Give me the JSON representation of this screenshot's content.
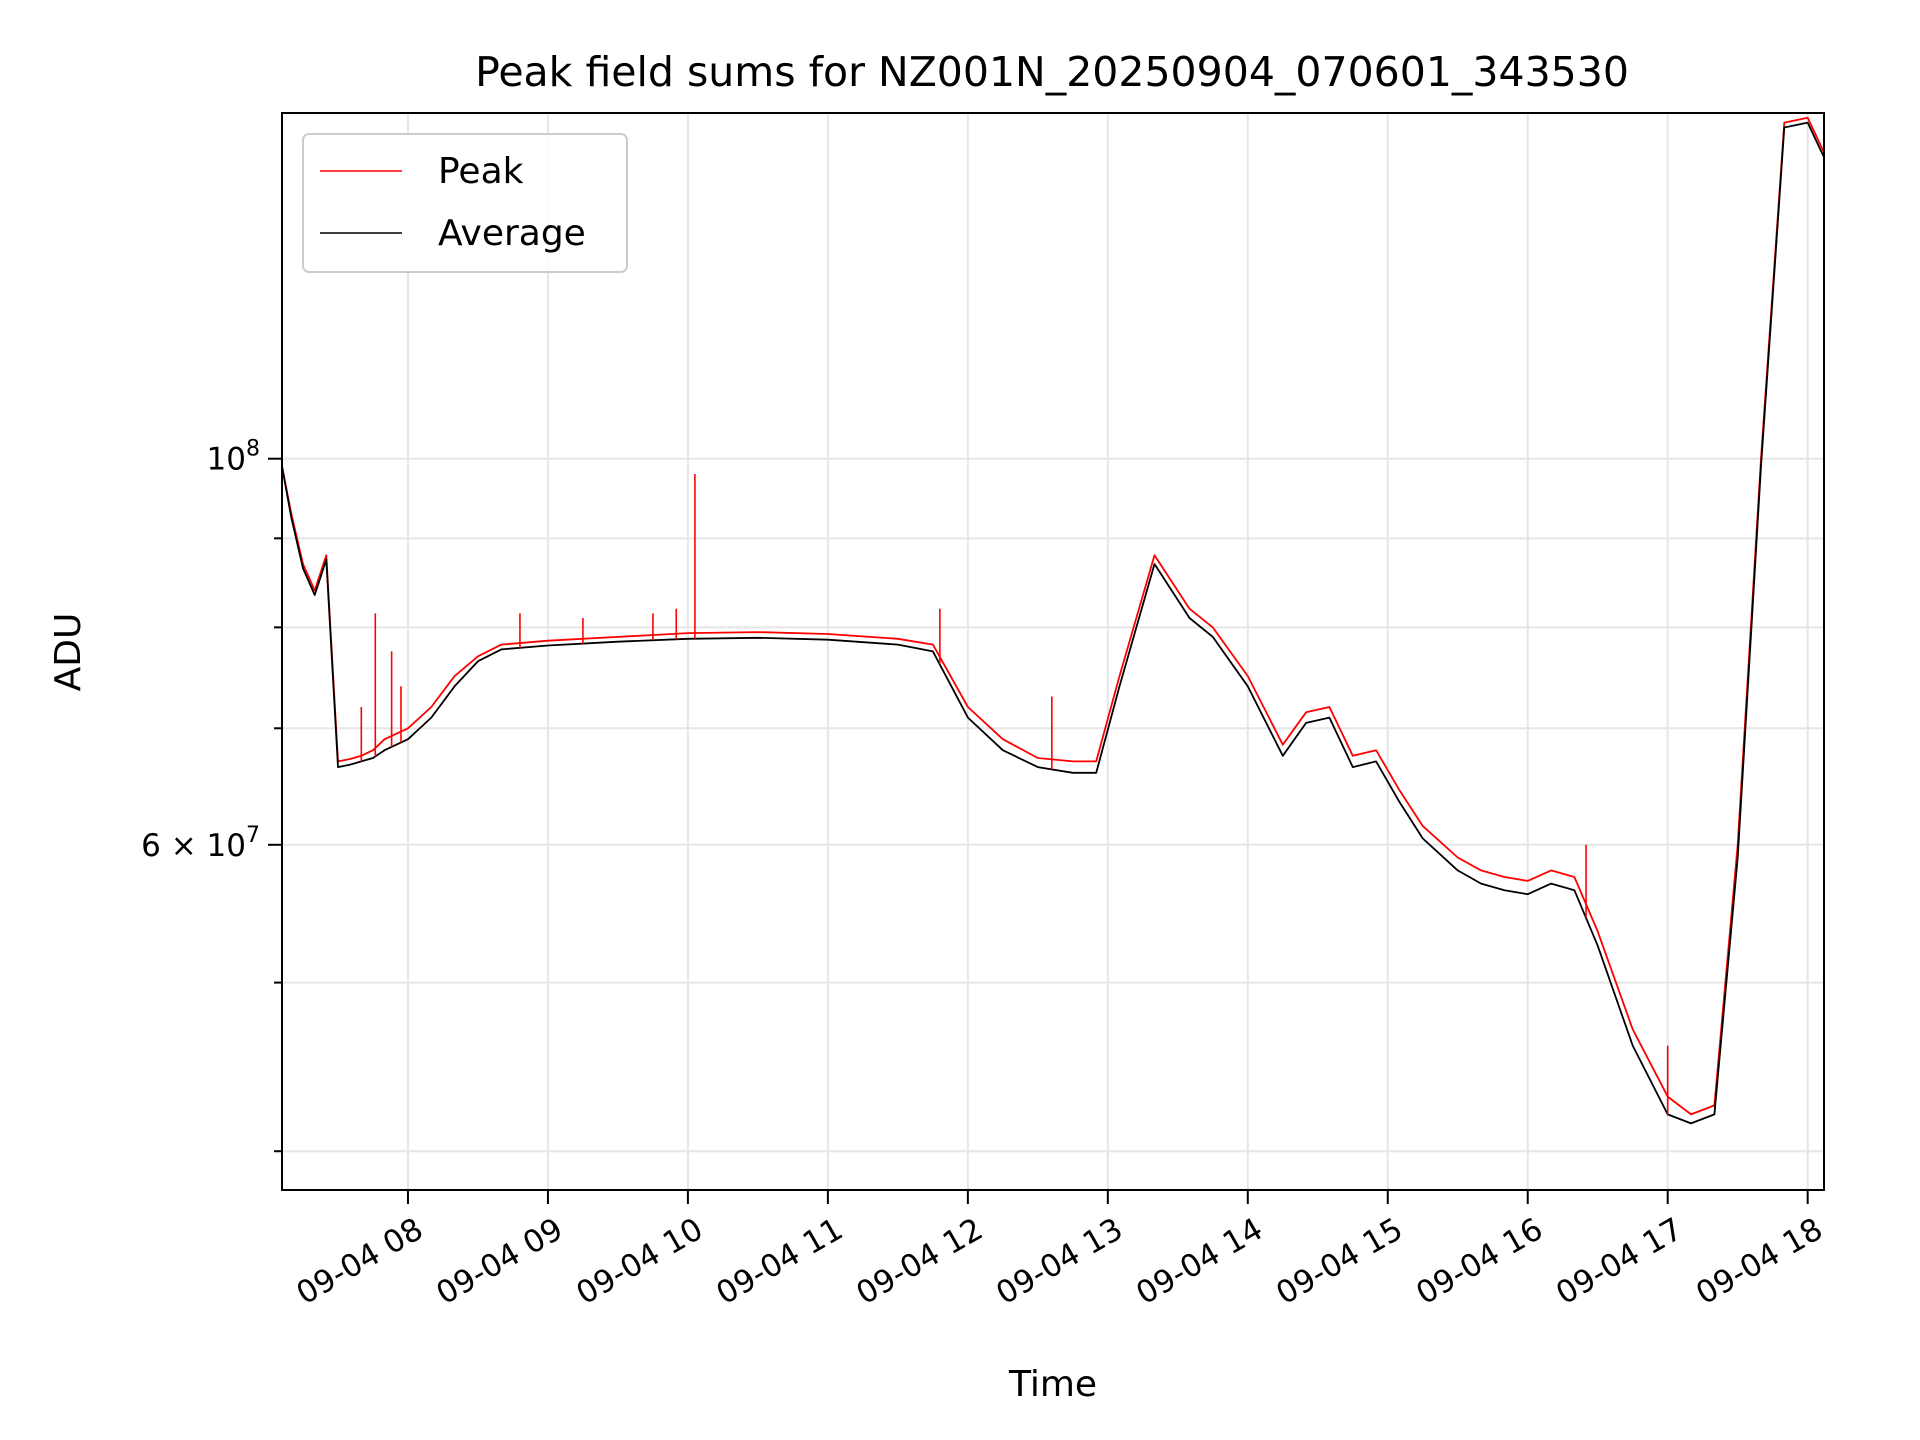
{
  "chart_data": {
    "type": "line",
    "title": "Peak field sums for NZ001N_20250904_070601_343530",
    "xlabel": "Time",
    "ylabel": "ADU",
    "y_scale": "log",
    "grid": true,
    "legend_position": "upper-left",
    "xlim": [
      "2025-09-04 07:06",
      "2025-09-04 18:07"
    ],
    "ylim": [
      38000000,
      158000000
    ],
    "x_ticks": [
      {
        "label": "09-04 08",
        "value": "2025-09-04 08:00"
      },
      {
        "label": "09-04 09",
        "value": "2025-09-04 09:00"
      },
      {
        "label": "09-04 10",
        "value": "2025-09-04 10:00"
      },
      {
        "label": "09-04 11",
        "value": "2025-09-04 11:00"
      },
      {
        "label": "09-04 12",
        "value": "2025-09-04 12:00"
      },
      {
        "label": "09-04 13",
        "value": "2025-09-04 13:00"
      },
      {
        "label": "09-04 14",
        "value": "2025-09-04 14:00"
      },
      {
        "label": "09-04 15",
        "value": "2025-09-04 15:00"
      },
      {
        "label": "09-04 16",
        "value": "2025-09-04 16:00"
      },
      {
        "label": "09-04 17",
        "value": "2025-09-04 17:00"
      },
      {
        "label": "09-04 18",
        "value": "2025-09-04 18:00"
      }
    ],
    "y_major_ticks": [
      {
        "base": "10",
        "exp": "8",
        "value": 100000000
      },
      {
        "base": "6 × 10",
        "exp": "7",
        "value": 60000000
      }
    ],
    "y_minor_ticks": [
      40000000,
      50000000,
      70000000,
      80000000,
      90000000
    ],
    "series": [
      {
        "name": "Peak",
        "color": "#ff0000",
        "x": [
          "2025-09-04 07:06",
          "2025-09-04 07:10",
          "2025-09-04 07:15",
          "2025-09-04 07:20",
          "2025-09-04 07:25",
          "2025-09-04 07:30",
          "2025-09-04 07:35",
          "2025-09-04 07:40",
          "2025-09-04 07:45",
          "2025-09-04 07:50",
          "2025-09-04 08:00",
          "2025-09-04 08:10",
          "2025-09-04 08:20",
          "2025-09-04 08:30",
          "2025-09-04 08:40",
          "2025-09-04 09:00",
          "2025-09-04 09:30",
          "2025-09-04 10:00",
          "2025-09-04 10:30",
          "2025-09-04 11:00",
          "2025-09-04 11:30",
          "2025-09-04 11:45",
          "2025-09-04 12:00",
          "2025-09-04 12:15",
          "2025-09-04 12:30",
          "2025-09-04 12:45",
          "2025-09-04 12:55",
          "2025-09-04 13:05",
          "2025-09-04 13:20",
          "2025-09-04 13:35",
          "2025-09-04 13:45",
          "2025-09-04 14:00",
          "2025-09-04 14:15",
          "2025-09-04 14:25",
          "2025-09-04 14:35",
          "2025-09-04 14:45",
          "2025-09-04 14:55",
          "2025-09-04 15:05",
          "2025-09-04 15:15",
          "2025-09-04 15:30",
          "2025-09-04 15:40",
          "2025-09-04 15:50",
          "2025-09-04 16:00",
          "2025-09-04 16:10",
          "2025-09-04 16:20",
          "2025-09-04 16:30",
          "2025-09-04 16:45",
          "2025-09-04 17:00",
          "2025-09-04 17:10",
          "2025-09-04 17:20",
          "2025-09-04 17:30",
          "2025-09-04 17:40",
          "2025-09-04 17:50",
          "2025-09-04 18:00",
          "2025-09-04 18:07"
        ],
        "values": [
          99000000,
          93000000,
          87000000,
          84000000,
          88000000,
          67000000,
          67200000,
          67500000,
          68000000,
          69000000,
          70000000,
          72000000,
          75000000,
          77000000,
          78200000,
          78600000,
          79000000,
          79400000,
          79500000,
          79300000,
          78800000,
          78200000,
          72000000,
          69000000,
          67300000,
          67000000,
          67000000,
          75000000,
          88000000,
          82000000,
          80000000,
          75000000,
          68500000,
          71500000,
          72000000,
          67500000,
          68000000,
          64500000,
          61500000,
          59000000,
          58000000,
          57500000,
          57200000,
          58000000,
          57500000,
          53500000,
          47000000,
          43000000,
          42000000,
          42500000,
          60000000,
          100000000,
          156000000,
          157000000,
          150000000
        ]
      },
      {
        "name": "Average",
        "color": "#000000",
        "x": [
          "2025-09-04 07:06",
          "2025-09-04 07:10",
          "2025-09-04 07:15",
          "2025-09-04 07:20",
          "2025-09-04 07:25",
          "2025-09-04 07:30",
          "2025-09-04 07:35",
          "2025-09-04 07:40",
          "2025-09-04 07:45",
          "2025-09-04 07:50",
          "2025-09-04 08:00",
          "2025-09-04 08:10",
          "2025-09-04 08:20",
          "2025-09-04 08:30",
          "2025-09-04 08:40",
          "2025-09-04 09:00",
          "2025-09-04 09:30",
          "2025-09-04 10:00",
          "2025-09-04 10:30",
          "2025-09-04 11:00",
          "2025-09-04 11:30",
          "2025-09-04 11:45",
          "2025-09-04 12:00",
          "2025-09-04 12:15",
          "2025-09-04 12:30",
          "2025-09-04 12:45",
          "2025-09-04 12:55",
          "2025-09-04 13:05",
          "2025-09-04 13:20",
          "2025-09-04 13:35",
          "2025-09-04 13:45",
          "2025-09-04 14:00",
          "2025-09-04 14:15",
          "2025-09-04 14:25",
          "2025-09-04 14:35",
          "2025-09-04 14:45",
          "2025-09-04 14:55",
          "2025-09-04 15:05",
          "2025-09-04 15:15",
          "2025-09-04 15:30",
          "2025-09-04 15:40",
          "2025-09-04 15:50",
          "2025-09-04 16:00",
          "2025-09-04 16:10",
          "2025-09-04 16:20",
          "2025-09-04 16:30",
          "2025-09-04 16:45",
          "2025-09-04 17:00",
          "2025-09-04 17:10",
          "2025-09-04 17:20",
          "2025-09-04 17:30",
          "2025-09-04 17:40",
          "2025-09-04 17:50",
          "2025-09-04 18:00",
          "2025-09-04 18:07"
        ],
        "values": [
          99000000,
          92500000,
          86500000,
          83500000,
          87500000,
          66500000,
          66700000,
          67000000,
          67300000,
          68000000,
          69000000,
          71000000,
          74000000,
          76500000,
          77700000,
          78100000,
          78500000,
          78800000,
          78900000,
          78700000,
          78200000,
          77500000,
          71000000,
          68000000,
          66500000,
          66000000,
          66000000,
          74000000,
          87000000,
          81000000,
          79000000,
          74000000,
          67500000,
          70500000,
          71000000,
          66500000,
          67000000,
          63500000,
          60500000,
          58000000,
          57000000,
          56500000,
          56200000,
          57000000,
          56500000,
          52500000,
          46000000,
          42000000,
          41500000,
          42000000,
          59000000,
          99000000,
          155000000,
          156000000,
          149000000
        ]
      }
    ],
    "spikes": [
      {
        "x": "2025-09-04 07:46",
        "value": 81500000
      },
      {
        "x": "2025-09-04 07:53",
        "value": 77500000
      },
      {
        "x": "2025-09-04 07:57",
        "value": 74000000
      },
      {
        "x": "2025-09-04 07:40",
        "value": 72000000
      },
      {
        "x": "2025-09-04 08:48",
        "value": 81500000
      },
      {
        "x": "2025-09-04 09:15",
        "value": 81000000
      },
      {
        "x": "2025-09-04 09:45",
        "value": 81500000
      },
      {
        "x": "2025-09-04 09:55",
        "value": 82000000
      },
      {
        "x": "2025-09-04 10:03",
        "value": 98000000
      },
      {
        "x": "2025-09-04 11:48",
        "value": 82000000
      },
      {
        "x": "2025-09-04 12:36",
        "value": 73000000
      },
      {
        "x": "2025-09-04 16:25",
        "value": 60000000
      },
      {
        "x": "2025-09-04 17:00",
        "value": 46000000
      }
    ]
  }
}
